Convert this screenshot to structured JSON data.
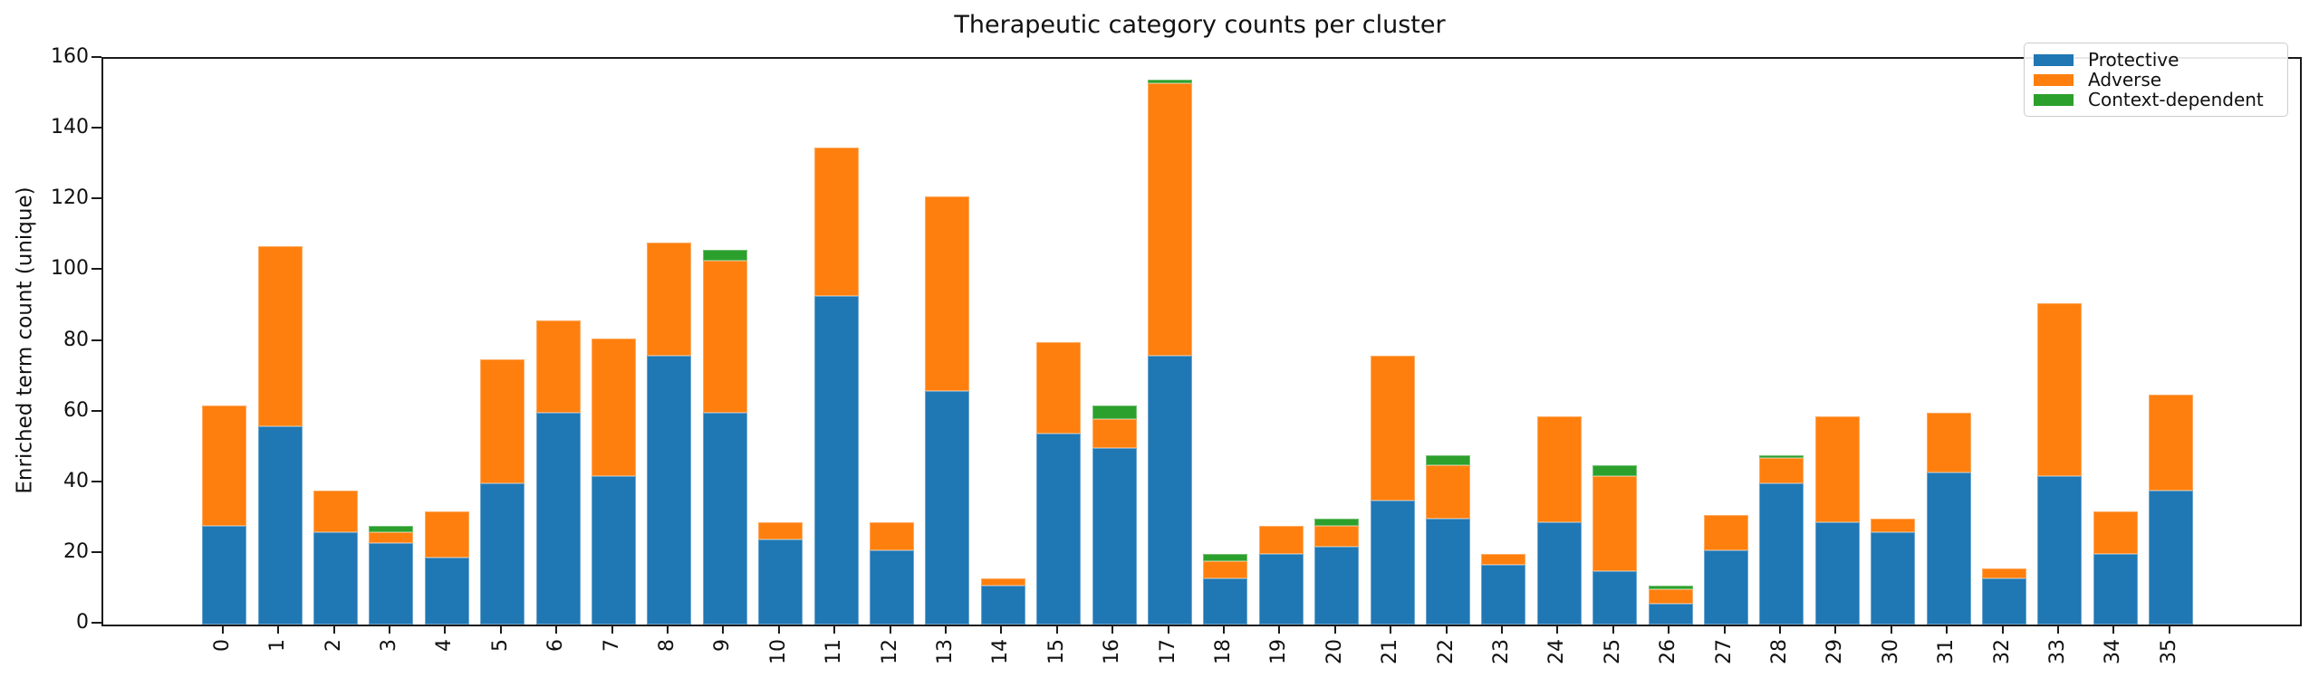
{
  "figure": {
    "title": "Therapeutic category counts per cluster",
    "ylabel": "Enriched term count (unique)"
  },
  "chart_data": {
    "type": "bar",
    "stacked": true,
    "title": "Therapeutic category counts per cluster",
    "xlabel": "",
    "ylabel": "Enriched term count (unique)",
    "ylim": [
      0,
      160
    ],
    "yticks": [
      0,
      20,
      40,
      60,
      80,
      100,
      120,
      140,
      160
    ],
    "grid": false,
    "legend_position": "upper right",
    "categories": [
      "0",
      "1",
      "2",
      "3",
      "4",
      "5",
      "6",
      "7",
      "8",
      "9",
      "10",
      "11",
      "12",
      "13",
      "14",
      "15",
      "16",
      "17",
      "18",
      "19",
      "20",
      "21",
      "22",
      "23",
      "24",
      "25",
      "26",
      "27",
      "28",
      "29",
      "30",
      "31",
      "32",
      "33",
      "34",
      "35"
    ],
    "series": [
      {
        "name": "Protective",
        "color": "#1f77b4",
        "values": [
          28,
          56,
          26,
          23,
          19,
          40,
          60,
          42,
          76,
          60,
          24,
          93,
          21,
          66,
          11,
          54,
          50,
          76,
          13,
          20,
          22,
          35,
          30,
          17,
          29,
          15,
          6,
          21,
          40,
          29,
          26,
          43,
          13,
          42,
          20,
          38
        ]
      },
      {
        "name": "Adverse",
        "color": "#ff7f0e",
        "values": [
          34,
          51,
          12,
          3,
          13,
          35,
          26,
          39,
          32,
          43,
          5,
          42,
          8,
          55,
          2,
          26,
          8,
          77,
          5,
          8,
          6,
          41,
          15,
          3,
          30,
          27,
          4,
          10,
          7,
          30,
          4,
          17,
          3,
          49,
          12,
          27
        ]
      },
      {
        "name": "Context-dependent",
        "color": "#2ca02c",
        "values": [
          0,
          0,
          0,
          2,
          0,
          0,
          0,
          0,
          0,
          3,
          0,
          0,
          0,
          0,
          0,
          0,
          4,
          1,
          2,
          0,
          2,
          0,
          3,
          0,
          0,
          3,
          1,
          0,
          1,
          0,
          0,
          0,
          0,
          0,
          0,
          0
        ]
      }
    ]
  }
}
